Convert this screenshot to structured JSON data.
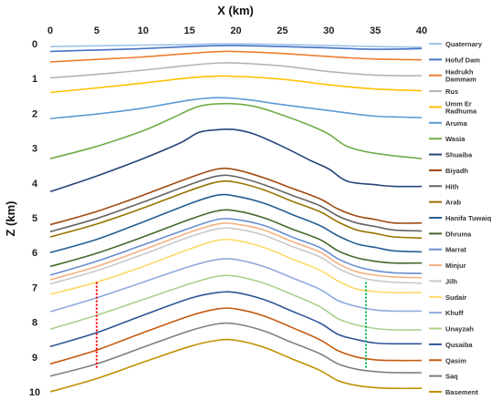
{
  "chart_data": {
    "type": "line",
    "xlabel": "X (km)",
    "ylabel": "Z (km)",
    "xlim": [
      0,
      40
    ],
    "ylim": [
      0,
      10
    ],
    "y_inverted": true,
    "x_axis_position": "top",
    "x_ticks": [
      "0",
      "5",
      "10",
      "15",
      "20",
      "25",
      "30",
      "35",
      "40"
    ],
    "y_ticks": [
      "0",
      "1",
      "2",
      "3",
      "4",
      "5",
      "6",
      "7",
      "8",
      "9",
      "10"
    ],
    "grid": false,
    "legend_position": "right",
    "series": [
      {
        "name": "Quaternary",
        "color": "#9dc3e6",
        "x": [
          0,
          5,
          10,
          15,
          19,
          25,
          30,
          35,
          40
        ],
        "y": [
          0.08,
          0.06,
          0.04,
          0.02,
          0.0,
          0.02,
          0.05,
          0.08,
          0.1
        ]
      },
      {
        "name": "Hofuf Dam",
        "color": "#4472c4",
        "x": [
          0,
          5,
          10,
          15,
          19,
          25,
          30,
          35,
          40
        ],
        "y": [
          0.22,
          0.18,
          0.14,
          0.08,
          0.05,
          0.08,
          0.12,
          0.16,
          0.14
        ]
      },
      {
        "name": "Hadrukh Dammam",
        "color": "#ed7d31",
        "x": [
          0,
          5,
          10,
          15,
          19,
          25,
          30,
          35,
          40
        ],
        "y": [
          0.52,
          0.45,
          0.38,
          0.28,
          0.22,
          0.28,
          0.37,
          0.44,
          0.46
        ]
      },
      {
        "name": "Rus",
        "color": "#b4b4b4",
        "x": [
          0,
          5,
          10,
          15,
          19,
          25,
          30,
          35,
          40
        ],
        "y": [
          0.98,
          0.88,
          0.76,
          0.62,
          0.55,
          0.64,
          0.8,
          0.9,
          0.92
        ]
      },
      {
        "name": "Umm Er Radhuma",
        "color": "#ffc000",
        "x": [
          0,
          5,
          10,
          15,
          19,
          25,
          30,
          35,
          40
        ],
        "y": [
          1.4,
          1.27,
          1.13,
          0.98,
          0.93,
          1.02,
          1.18,
          1.3,
          1.35
        ]
      },
      {
        "name": "Aruma",
        "color": "#5b9bd5",
        "x": [
          0,
          5,
          10,
          15,
          18,
          21,
          25,
          30,
          35,
          40
        ],
        "y": [
          2.15,
          2.02,
          1.85,
          1.62,
          1.55,
          1.6,
          1.75,
          1.92,
          2.08,
          2.12
        ]
      },
      {
        "name": "Wasia",
        "color": "#70ad47",
        "x": [
          0,
          5,
          10,
          13,
          16,
          19,
          22,
          25,
          28,
          30,
          32,
          35,
          40
        ],
        "y": [
          3.3,
          2.95,
          2.5,
          2.15,
          1.8,
          1.72,
          1.8,
          2.05,
          2.35,
          2.6,
          2.95,
          3.15,
          3.3
        ]
      },
      {
        "name": "Shuaiba",
        "color": "#264478",
        "x": [
          0,
          5,
          10,
          14,
          16,
          18,
          20,
          22,
          25,
          28,
          30,
          32,
          35,
          37,
          40
        ],
        "y": [
          4.25,
          3.8,
          3.3,
          2.85,
          2.55,
          2.47,
          2.47,
          2.6,
          2.95,
          3.35,
          3.6,
          3.95,
          4.05,
          4.1,
          4.1
        ]
      },
      {
        "name": "Biyadh",
        "color": "#9e480e",
        "x": [
          0,
          5,
          10,
          15,
          18,
          20,
          23,
          26,
          29,
          31,
          33,
          35,
          37,
          40
        ],
        "y": [
          5.2,
          4.82,
          4.35,
          3.85,
          3.6,
          3.62,
          3.85,
          4.15,
          4.45,
          4.75,
          4.95,
          5.05,
          5.15,
          5.15
        ]
      },
      {
        "name": "Hith",
        "color": "#636363",
        "x": [
          0,
          5,
          10,
          15,
          18,
          20,
          23,
          26,
          29,
          31,
          33,
          35,
          37,
          40
        ],
        "y": [
          5.4,
          5.02,
          4.55,
          4.05,
          3.8,
          3.82,
          4.05,
          4.35,
          4.65,
          4.95,
          5.15,
          5.25,
          5.35,
          5.38
        ]
      },
      {
        "name": "Arab",
        "color": "#997300",
        "x": [
          0,
          5,
          10,
          15,
          18,
          20,
          23,
          26,
          29,
          31,
          33,
          35,
          37,
          40
        ],
        "y": [
          5.55,
          5.18,
          4.72,
          4.22,
          3.97,
          3.98,
          4.2,
          4.52,
          4.82,
          5.12,
          5.35,
          5.45,
          5.55,
          5.58
        ]
      },
      {
        "name": "Hanifa Tuwaiq",
        "color": "#255e91",
        "x": [
          0,
          5,
          10,
          15,
          18,
          20,
          23,
          26,
          29,
          31,
          33,
          35,
          37,
          40
        ],
        "y": [
          6.0,
          5.62,
          5.12,
          4.6,
          4.35,
          4.38,
          4.58,
          4.9,
          5.22,
          5.52,
          5.75,
          5.85,
          5.95,
          5.98
        ]
      },
      {
        "name": "Dhruma",
        "color": "#43682b",
        "x": [
          0,
          5,
          10,
          15,
          18,
          20,
          23,
          26,
          29,
          31,
          33,
          35,
          37,
          40
        ],
        "y": [
          6.4,
          6.02,
          5.55,
          5.05,
          4.8,
          4.8,
          5.0,
          5.32,
          5.62,
          5.95,
          6.15,
          6.25,
          6.3,
          6.3
        ]
      },
      {
        "name": "Marrat",
        "color": "#698ed0",
        "x": [
          0,
          5,
          10,
          15,
          18,
          20,
          23,
          26,
          29,
          31,
          33,
          35,
          37,
          40
        ],
        "y": [
          6.65,
          6.25,
          5.78,
          5.3,
          5.05,
          5.05,
          5.22,
          5.55,
          5.85,
          6.18,
          6.4,
          6.52,
          6.58,
          6.6
        ]
      },
      {
        "name": "Minjur",
        "color": "#f4b183",
        "x": [
          0,
          5,
          10,
          15,
          18,
          20,
          23,
          26,
          29,
          31,
          33,
          35,
          37,
          40
        ],
        "y": [
          6.78,
          6.4,
          5.92,
          5.42,
          5.18,
          5.18,
          5.35,
          5.68,
          5.98,
          6.32,
          6.55,
          6.65,
          6.7,
          6.72
        ]
      },
      {
        "name": "Jilh",
        "color": "#c9c9c9",
        "x": [
          0,
          5,
          10,
          15,
          18,
          20,
          23,
          26,
          29,
          31,
          33,
          35,
          37,
          40
        ],
        "y": [
          6.9,
          6.52,
          6.05,
          5.55,
          5.32,
          5.32,
          5.5,
          5.82,
          6.12,
          6.45,
          6.68,
          6.8,
          6.85,
          6.88
        ]
      },
      {
        "name": "Sudair",
        "color": "#ffd966",
        "x": [
          0,
          5,
          10,
          15,
          18,
          20,
          23,
          26,
          29,
          31,
          33,
          35,
          37,
          40
        ],
        "y": [
          7.2,
          6.85,
          6.4,
          5.9,
          5.65,
          5.65,
          5.85,
          6.18,
          6.5,
          6.82,
          7.05,
          7.12,
          7.15,
          7.15
        ]
      },
      {
        "name": "Khuff",
        "color": "#8faadc",
        "x": [
          0,
          5,
          10,
          15,
          18,
          20,
          23,
          26,
          29,
          31,
          33,
          35,
          37,
          40
        ],
        "y": [
          7.7,
          7.3,
          6.85,
          6.4,
          6.2,
          6.2,
          6.4,
          6.72,
          7.05,
          7.38,
          7.55,
          7.65,
          7.68,
          7.68
        ]
      },
      {
        "name": "Unayzah",
        "color": "#a9d18e",
        "x": [
          0,
          5,
          10,
          15,
          18,
          20,
          23,
          26,
          29,
          31,
          33,
          35,
          37,
          40
        ],
        "y": [
          8.2,
          7.8,
          7.35,
          6.9,
          6.68,
          6.68,
          6.88,
          7.2,
          7.55,
          7.9,
          8.08,
          8.18,
          8.22,
          8.22
        ]
      },
      {
        "name": "Qusaiba",
        "color": "#2f5597",
        "x": [
          0,
          5,
          10,
          15,
          18,
          20,
          23,
          26,
          29,
          31,
          33,
          35,
          37,
          40
        ],
        "y": [
          8.7,
          8.3,
          7.8,
          7.32,
          7.15,
          7.15,
          7.35,
          7.68,
          8.02,
          8.35,
          8.5,
          8.6,
          8.62,
          8.62
        ]
      },
      {
        "name": "Qasim",
        "color": "#c55a11",
        "x": [
          0,
          5,
          10,
          15,
          18,
          20,
          23,
          26,
          29,
          31,
          33,
          35,
          37,
          40
        ],
        "y": [
          9.2,
          8.8,
          8.3,
          7.82,
          7.62,
          7.62,
          7.82,
          8.15,
          8.5,
          8.82,
          9.0,
          9.08,
          9.1,
          9.1
        ]
      },
      {
        "name": "Saq",
        "color": "#7f7f7f",
        "x": [
          0,
          5,
          10,
          15,
          18,
          20,
          23,
          26,
          29,
          31,
          33,
          35,
          37,
          40
        ],
        "y": [
          9.55,
          9.2,
          8.72,
          8.25,
          8.05,
          8.05,
          8.25,
          8.58,
          8.9,
          9.2,
          9.35,
          9.42,
          9.45,
          9.45
        ]
      },
      {
        "name": "Basement",
        "color": "#bf9000",
        "x": [
          0,
          5,
          10,
          15,
          18,
          20,
          23,
          26,
          29,
          31,
          33,
          35,
          37,
          40
        ],
        "y": [
          10.0,
          9.62,
          9.15,
          8.7,
          8.52,
          8.52,
          8.72,
          9.05,
          9.38,
          9.68,
          9.82,
          9.88,
          9.9,
          9.9
        ]
      }
    ],
    "annotations": [
      {
        "type": "dotted-vertical",
        "color": "#ff0000",
        "x": 5,
        "y_range": [
          6.85,
          9.35
        ]
      },
      {
        "type": "dotted-vertical",
        "color": "#00b050",
        "x": 34,
        "y_range": [
          6.85,
          9.35
        ]
      }
    ]
  }
}
